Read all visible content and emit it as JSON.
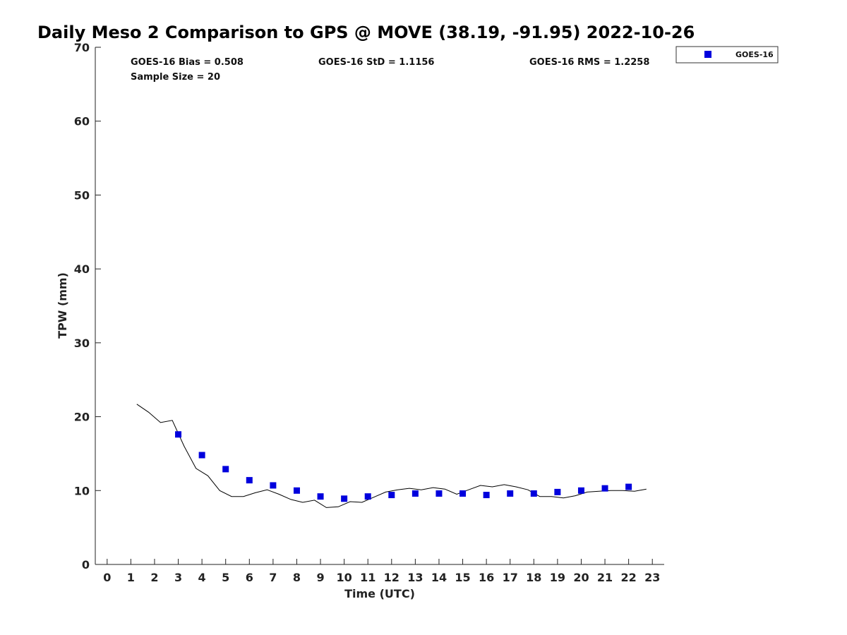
{
  "chart_data": {
    "type": "scatter",
    "title": "Daily Meso 2 Comparison to GPS @ MOVE (38.19, -91.95) 2022-10-26",
    "xlabel": "Time (UTC)",
    "ylabel": "TPW (mm)",
    "xlim": [
      -0.5,
      23.5
    ],
    "ylim": [
      0,
      70
    ],
    "xticks": [
      0,
      1,
      2,
      3,
      4,
      5,
      6,
      7,
      8,
      9,
      10,
      11,
      12,
      13,
      14,
      15,
      16,
      17,
      18,
      19,
      20,
      21,
      22,
      23
    ],
    "yticks": [
      0,
      10,
      20,
      30,
      40,
      50,
      60,
      70
    ],
    "grid": false,
    "legend_position": "top-right",
    "series": [
      {
        "name": "GOES-16",
        "marker": "square",
        "color": "#0000dd",
        "x": [
          3,
          4,
          5,
          6,
          7,
          8,
          9,
          10,
          11,
          12,
          13,
          14,
          15,
          16,
          17,
          18,
          19,
          20,
          21,
          22
        ],
        "values": [
          17.6,
          14.8,
          12.9,
          11.4,
          10.7,
          10.0,
          9.2,
          8.9,
          9.2,
          9.4,
          9.6,
          9.6,
          9.6,
          9.4,
          9.6,
          9.6,
          9.8,
          10.0,
          10.3,
          10.5
        ]
      },
      {
        "style": "line",
        "color": "#000000",
        "x": [
          1.25,
          1.75,
          2.25,
          2.75,
          3.25,
          3.75,
          4.25,
          4.75,
          5.25,
          5.75,
          6.25,
          6.75,
          7.25,
          7.75,
          8.25,
          8.75,
          9.25,
          9.75,
          10.25,
          10.75,
          11.25,
          11.75,
          12.25,
          12.75,
          13.25,
          13.75,
          14.25,
          14.75,
          15.25,
          15.75,
          16.25,
          16.75,
          17.25,
          17.75,
          18.25,
          18.75,
          19.25,
          19.75,
          20.25,
          20.75,
          21.25,
          21.75,
          22.25,
          22.75
        ],
        "values": [
          21.7,
          20.6,
          19.2,
          19.5,
          16.0,
          13.0,
          12.0,
          10.0,
          9.2,
          9.2,
          9.7,
          10.1,
          9.5,
          8.8,
          8.4,
          8.7,
          7.7,
          7.8,
          8.5,
          8.4,
          9.1,
          9.8,
          10.1,
          10.3,
          10.1,
          10.4,
          10.2,
          9.5,
          10.1,
          10.7,
          10.5,
          10.8,
          10.5,
          10.1,
          9.2,
          9.2,
          9.0,
          9.3,
          9.8,
          9.9,
          10.0,
          10.0,
          9.9,
          10.2
        ]
      }
    ],
    "annotations": {
      "bias": "GOES-16 Bias = 0.508",
      "std": "GOES-16 StD = 1.1156",
      "rms": "GOES-16 RMS = 1.2258",
      "sample": "Sample Size = 20"
    }
  },
  "colors": {
    "marker": "#0000dd",
    "line": "#000000",
    "axis": "#222222"
  }
}
